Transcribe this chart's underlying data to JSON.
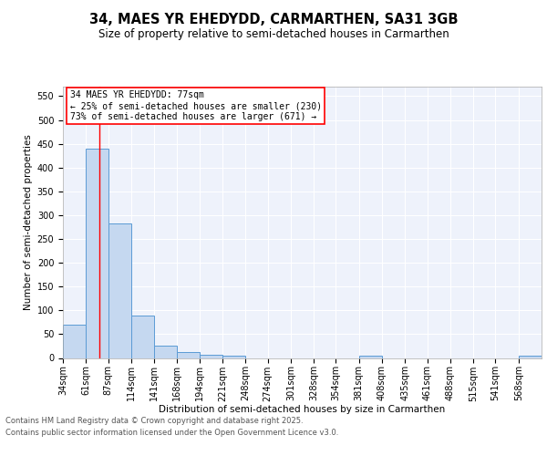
{
  "title1": "34, MAES YR EHEDYDD, CARMARTHEN, SA31 3GB",
  "title2": "Size of property relative to semi-detached houses in Carmarthen",
  "xlabel": "Distribution of semi-detached houses by size in Carmarthen",
  "ylabel": "Number of semi-detached properties",
  "bin_labels": [
    "34sqm",
    "61sqm",
    "87sqm",
    "114sqm",
    "141sqm",
    "168sqm",
    "194sqm",
    "221sqm",
    "248sqm",
    "274sqm",
    "301sqm",
    "328sqm",
    "354sqm",
    "381sqm",
    "408sqm",
    "435sqm",
    "461sqm",
    "488sqm",
    "515sqm",
    "541sqm",
    "568sqm"
  ],
  "bar_values": [
    70,
    440,
    283,
    90,
    25,
    12,
    6,
    4,
    0,
    0,
    0,
    0,
    0,
    4,
    0,
    0,
    0,
    0,
    0,
    0,
    4
  ],
  "bar_color": "#c5d8f0",
  "bar_edge_color": "#5b9bd5",
  "red_line_x": 77,
  "bin_edges_numeric": [
    34,
    61,
    87,
    114,
    141,
    168,
    194,
    221,
    248,
    274,
    301,
    328,
    354,
    381,
    408,
    435,
    461,
    488,
    515,
    541,
    568,
    595
  ],
  "annotation_title": "34 MAES YR EHEDYDD: 77sqm",
  "annotation_line1": "← 25% of semi-detached houses are smaller (230)",
  "annotation_line2": "73% of semi-detached houses are larger (671) →",
  "annotation_box_color": "white",
  "annotation_box_edge": "red",
  "footer1": "Contains HM Land Registry data © Crown copyright and database right 2025.",
  "footer2": "Contains public sector information licensed under the Open Government Licence v3.0.",
  "ylim": [
    0,
    570
  ],
  "yticks": [
    0,
    50,
    100,
    150,
    200,
    250,
    300,
    350,
    400,
    450,
    500,
    550
  ],
  "background_color": "#eef2fb",
  "grid_color": "white",
  "title1_fontsize": 10.5,
  "title2_fontsize": 8.5,
  "ylabel_fontsize": 7.5,
  "xlabel_fontsize": 7.5,
  "tick_fontsize": 7,
  "annotation_fontsize": 7,
  "footer_fontsize": 6
}
